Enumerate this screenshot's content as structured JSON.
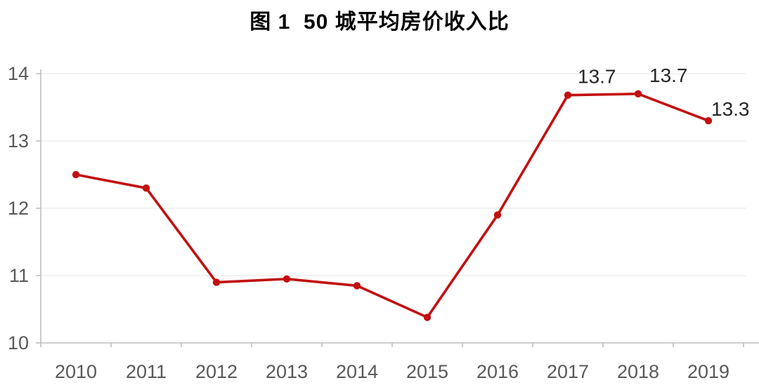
{
  "page": {
    "background": "#ffffff"
  },
  "chart_data": {
    "type": "line",
    "title": "图 1  50 城平均房价收入比",
    "categories": [
      "2010",
      "2011",
      "2012",
      "2013",
      "2014",
      "2015",
      "2016",
      "2017",
      "2018",
      "2019"
    ],
    "values": [
      12.5,
      12.3,
      10.9,
      10.95,
      10.85,
      10.38,
      11.9,
      13.68,
      13.7,
      13.3
    ],
    "point_labels": [
      "",
      "",
      "",
      "",
      "",
      "",
      "",
      "13.7",
      "13.7",
      "13.3"
    ],
    "xlabel": "",
    "ylabel": "",
    "ylim": [
      10,
      14
    ],
    "y_ticks": [
      10,
      11,
      12,
      13,
      14
    ],
    "grid": true,
    "legend": "none",
    "colors": {
      "line": "#c21010",
      "marker": "#c21010",
      "axis": "#bfbfbf",
      "gridline": "#ebebeb",
      "tick_label": "#595959",
      "data_label": "#262626",
      "title": "#000000"
    }
  }
}
